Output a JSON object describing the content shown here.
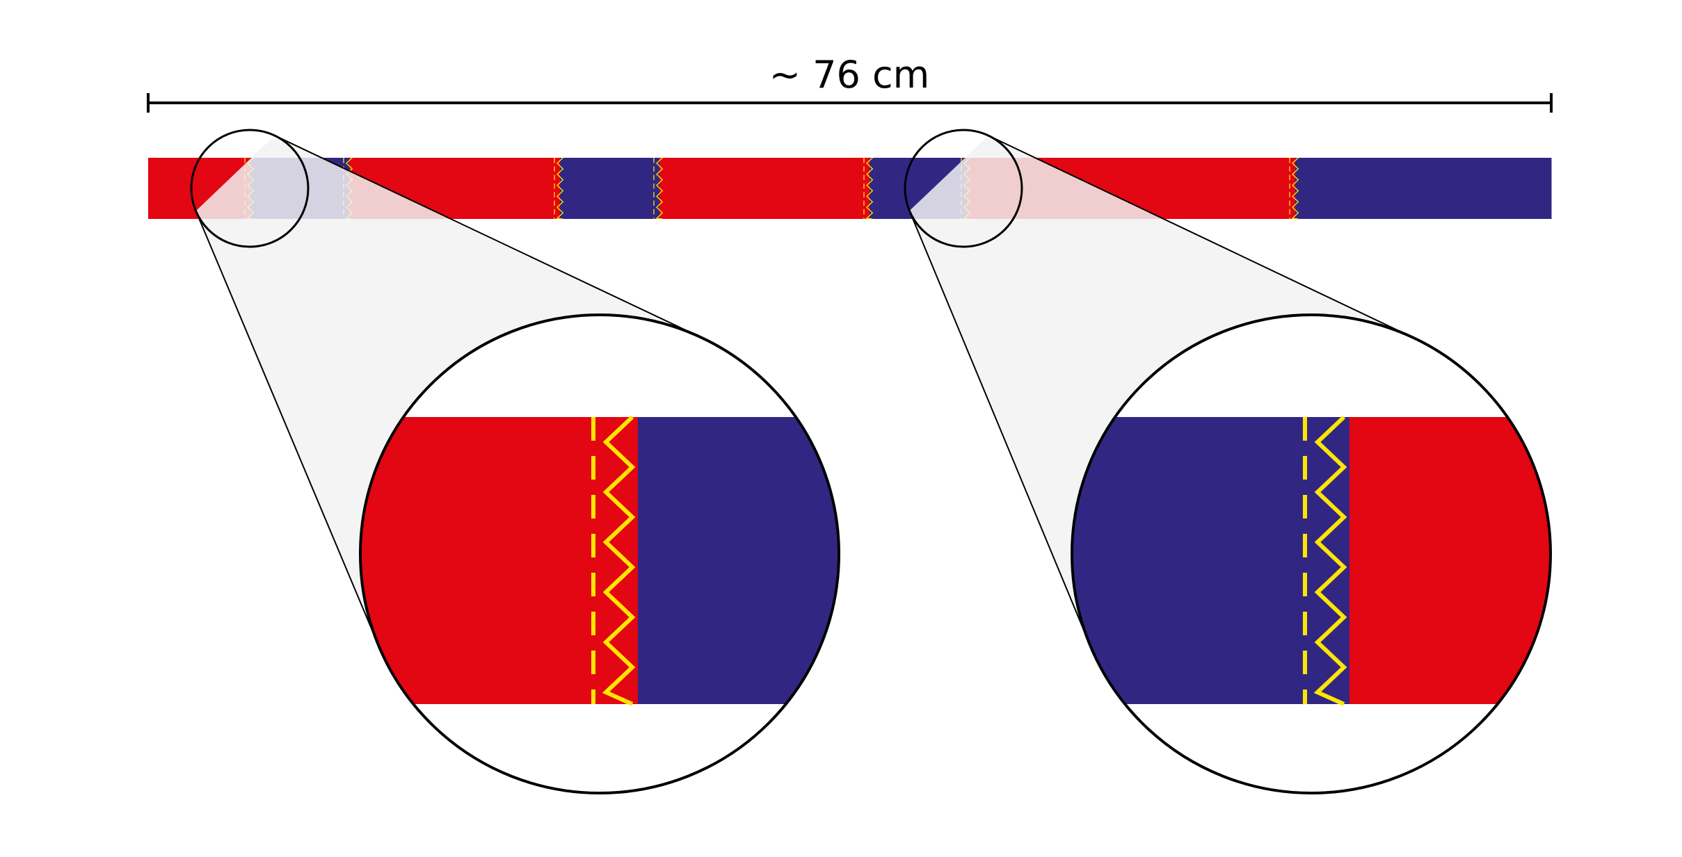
{
  "dimension": {
    "label": "~ 76 cm"
  },
  "colors": {
    "red": "#e30613",
    "blue": "#312783",
    "yellow": "#ffe600",
    "outline": "#000000",
    "zoom_cone_fill": "#f2f2f2"
  },
  "icons": {
    "stitch": "zigzag-stitch-icon",
    "magnifier": "magnifier-circle-icon"
  },
  "strip": {
    "order": [
      "red",
      "blue",
      "red",
      "blue",
      "red",
      "blue",
      "red",
      "blue"
    ],
    "seams": 7
  },
  "zoom_details": [
    {
      "name": "zoom-detail-left",
      "left_color": "red",
      "right_color": "blue",
      "seam_color": "red"
    },
    {
      "name": "zoom-detail-right",
      "left_color": "blue",
      "right_color": "red",
      "seam_color": "blue"
    }
  ]
}
